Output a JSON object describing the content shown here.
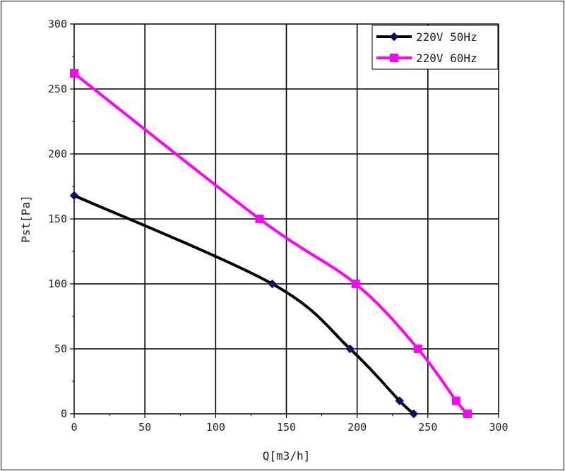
{
  "chart_data": {
    "type": "line",
    "title": "",
    "xlabel": "Q[m3/h]",
    "ylabel": "Pst[Pa]",
    "xlim": [
      0,
      300
    ],
    "ylim": [
      0,
      300
    ],
    "xticks": [
      0,
      50,
      100,
      150,
      200,
      250,
      300
    ],
    "yticks": [
      0,
      50,
      100,
      150,
      200,
      250,
      300
    ],
    "grid": true,
    "legend_position": "top-right",
    "series": [
      {
        "name": "220V 50Hz",
        "color": "#000000",
        "marker_color": "#0b0b6e",
        "marker": "diamond",
        "x": [
          0,
          140,
          195,
          230,
          240
        ],
        "y": [
          168,
          100,
          50,
          10,
          0
        ]
      },
      {
        "name": "220V 60Hz",
        "color": "#ff00ff",
        "marker_color": "#ff00ff",
        "marker": "square",
        "x": [
          0,
          131,
          199,
          243,
          270,
          278
        ],
        "y": [
          262,
          150,
          100,
          50,
          10,
          0
        ]
      }
    ]
  }
}
